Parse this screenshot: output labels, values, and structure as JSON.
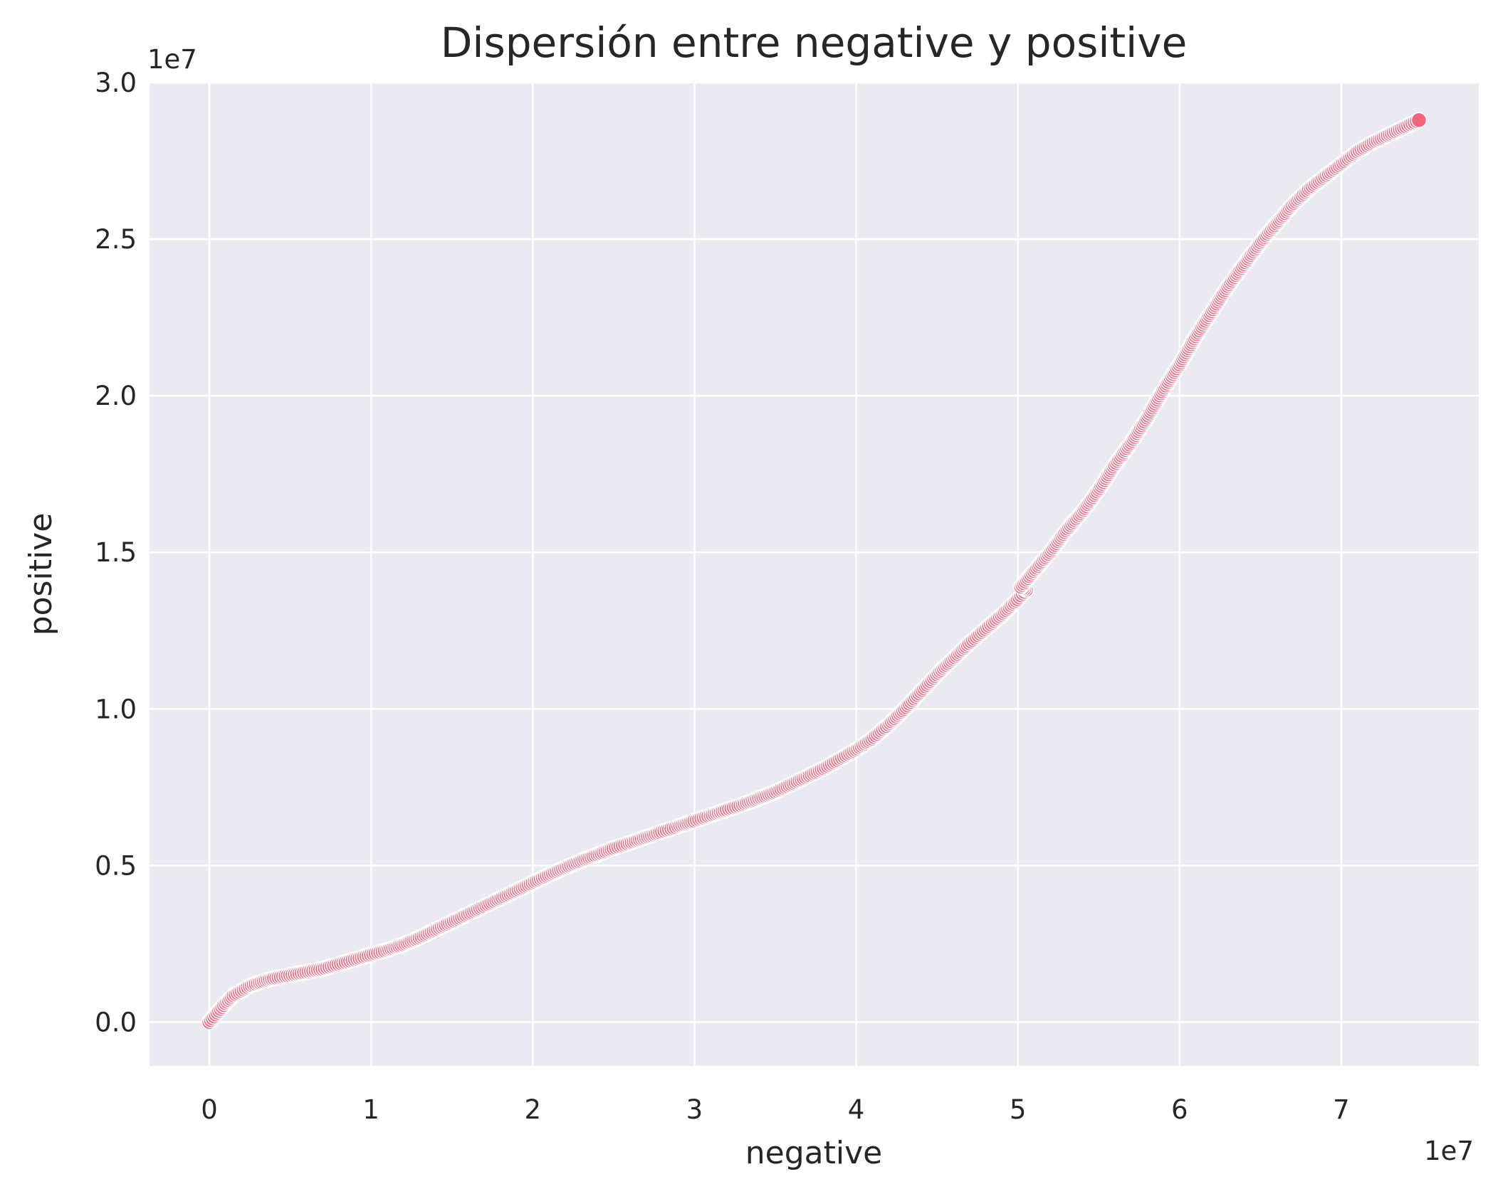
{
  "chart_data": {
    "type": "scatter",
    "title": "Dispersión entre negative y positive",
    "xlabel": "negative",
    "ylabel": "positive",
    "x_offset_text": "1e7",
    "y_offset_text": "1e7",
    "xlim": [
      -3700000,
      78500000
    ],
    "ylim": [
      -1400000,
      30000000
    ],
    "x_ticks": [
      0,
      10000000,
      20000000,
      30000000,
      40000000,
      50000000,
      60000000,
      70000000
    ],
    "x_tick_labels": [
      "0",
      "1",
      "2",
      "3",
      "4",
      "5",
      "6",
      "7"
    ],
    "y_ticks": [
      0,
      5000000,
      10000000,
      15000000,
      20000000,
      25000000,
      30000000
    ],
    "y_tick_labels": [
      "0.0",
      "0.5",
      "1.0",
      "1.5",
      "2.0",
      "2.5",
      "3.0"
    ],
    "grid": true,
    "colors": {
      "marker": "#f2657d",
      "marker_edge": "#ffffff",
      "plot_background": "#eaeaf2",
      "grid": "#ffffff"
    },
    "series": [
      {
        "points": [
          [
            0,
            0
          ],
          [
            500000,
            300000
          ],
          [
            1000000,
            600000
          ],
          [
            1500000,
            850000
          ],
          [
            2000000,
            1000000
          ],
          [
            2500000,
            1150000
          ],
          [
            3000000,
            1250000
          ],
          [
            3500000,
            1330000
          ],
          [
            4000000,
            1400000
          ],
          [
            5000000,
            1500000
          ],
          [
            6000000,
            1600000
          ],
          [
            7000000,
            1700000
          ],
          [
            8000000,
            1850000
          ],
          [
            9000000,
            2000000
          ],
          [
            10000000,
            2150000
          ],
          [
            11000000,
            2300000
          ],
          [
            12000000,
            2480000
          ],
          [
            13000000,
            2700000
          ],
          [
            14000000,
            2950000
          ],
          [
            15000000,
            3200000
          ],
          [
            16000000,
            3450000
          ],
          [
            17000000,
            3700000
          ],
          [
            18000000,
            3950000
          ],
          [
            19000000,
            4200000
          ],
          [
            20000000,
            4450000
          ],
          [
            21000000,
            4700000
          ],
          [
            22000000,
            4930000
          ],
          [
            23000000,
            5150000
          ],
          [
            24000000,
            5350000
          ],
          [
            25000000,
            5550000
          ],
          [
            26000000,
            5720000
          ],
          [
            27000000,
            5900000
          ],
          [
            28000000,
            6080000
          ],
          [
            29000000,
            6250000
          ],
          [
            30000000,
            6430000
          ],
          [
            31000000,
            6600000
          ],
          [
            32000000,
            6780000
          ],
          [
            33000000,
            6950000
          ],
          [
            34000000,
            7150000
          ],
          [
            35000000,
            7350000
          ],
          [
            36000000,
            7600000
          ],
          [
            37000000,
            7850000
          ],
          [
            38000000,
            8100000
          ],
          [
            39000000,
            8400000
          ],
          [
            40000000,
            8700000
          ],
          [
            41000000,
            9050000
          ],
          [
            42000000,
            9500000
          ],
          [
            43000000,
            10000000
          ],
          [
            44000000,
            10550000
          ],
          [
            45000000,
            11100000
          ],
          [
            46000000,
            11600000
          ],
          [
            47000000,
            12100000
          ],
          [
            48000000,
            12550000
          ],
          [
            49000000,
            13000000
          ],
          [
            50000000,
            13500000
          ],
          [
            50500000,
            13800000
          ],
          [
            50200000,
            13900000
          ],
          [
            51000000,
            14400000
          ],
          [
            52000000,
            15000000
          ],
          [
            53000000,
            15700000
          ],
          [
            54000000,
            16300000
          ],
          [
            55000000,
            17000000
          ],
          [
            56000000,
            17800000
          ],
          [
            57000000,
            18500000
          ],
          [
            58000000,
            19300000
          ],
          [
            59000000,
            20200000
          ],
          [
            60000000,
            21000000
          ],
          [
            61000000,
            21900000
          ],
          [
            62000000,
            22700000
          ],
          [
            63000000,
            23500000
          ],
          [
            64000000,
            24200000
          ],
          [
            65000000,
            24900000
          ],
          [
            66000000,
            25500000
          ],
          [
            67000000,
            26100000
          ],
          [
            68000000,
            26600000
          ],
          [
            69000000,
            27000000
          ],
          [
            70000000,
            27400000
          ],
          [
            71000000,
            27800000
          ],
          [
            72000000,
            28100000
          ],
          [
            73000000,
            28350000
          ],
          [
            74000000,
            28600000
          ],
          [
            74800000,
            28800000
          ]
        ]
      }
    ]
  }
}
